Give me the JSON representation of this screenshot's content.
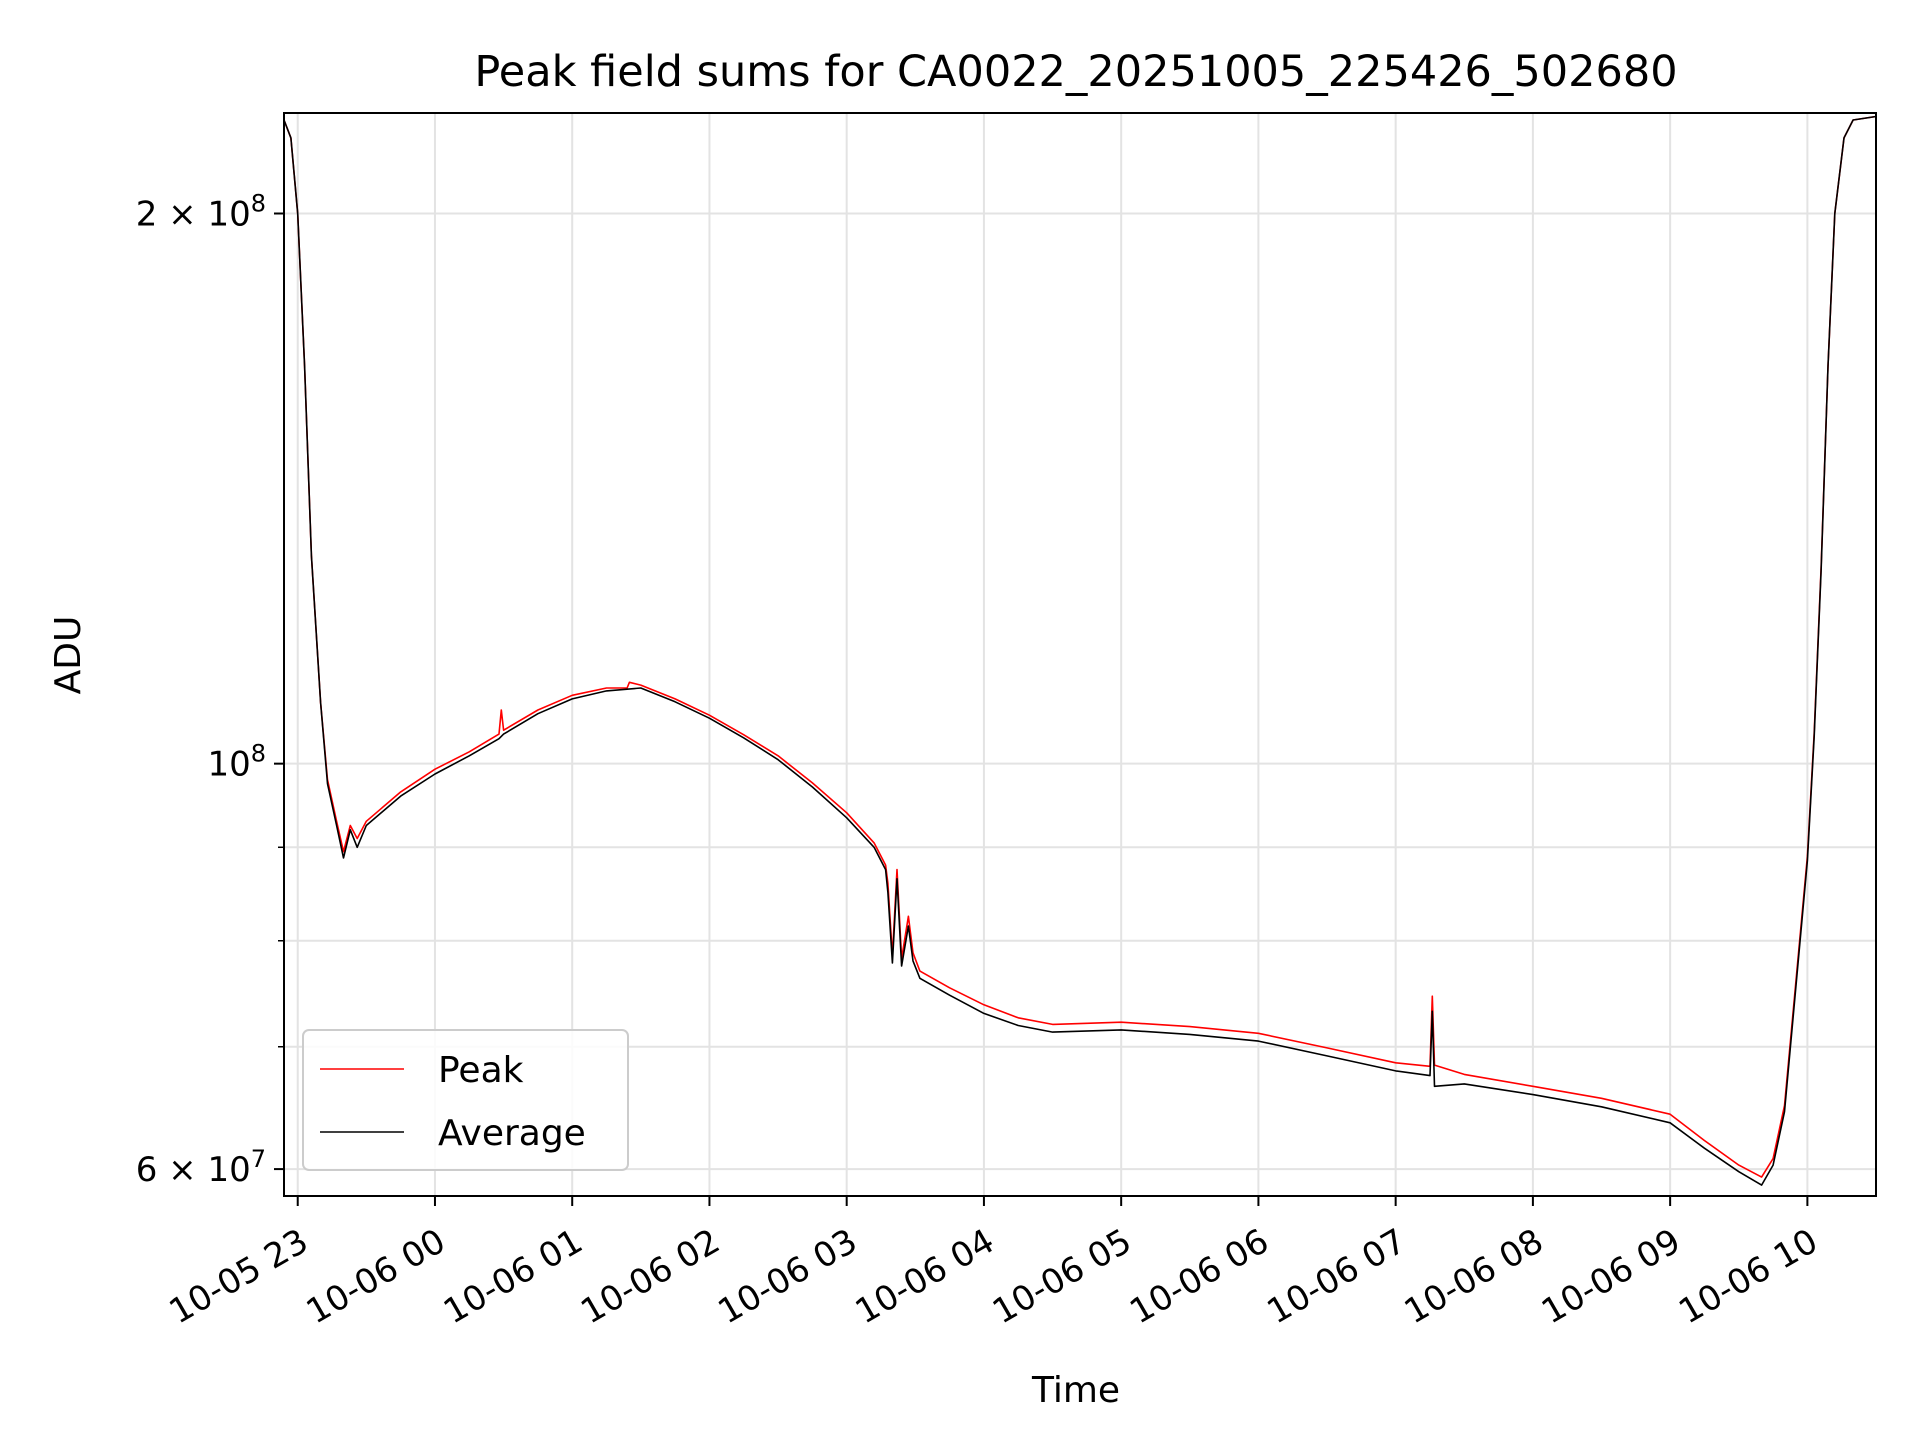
{
  "chart_data": {
    "type": "line",
    "title": "Peak field sums for CA0022_20251005_225426_502680",
    "xlabel": "Time",
    "ylabel": "ADU",
    "x_ticks": [
      "10-05 23",
      "10-06 00",
      "10-06 01",
      "10-06 02",
      "10-06 03",
      "10-06 04",
      "10-06 05",
      "10-06 06",
      "10-06 07",
      "10-06 08",
      "10-06 09",
      "10-06 10"
    ],
    "x_tick_times": [
      "2025-10-05 23:00",
      "2025-10-06 00:00",
      "2025-10-06 01:00",
      "2025-10-06 02:00",
      "2025-10-06 03:00",
      "2025-10-06 04:00",
      "2025-10-06 05:00",
      "2025-10-06 06:00",
      "2025-10-06 07:00",
      "2025-10-06 08:00",
      "2025-10-06 09:00",
      "2025-10-06 10:00"
    ],
    "xlim": [
      "2025-10-05 22:54",
      "2025-10-06 10:30"
    ],
    "y_scale": "log",
    "ylim": [
      58000000,
      227000000
    ],
    "y_major_ticks": [
      {
        "value": 60000000,
        "label": "6 × 10⁷",
        "mantissa": "6",
        "exponent": "7"
      },
      {
        "value": 100000000,
        "label": "10⁸",
        "mantissa": "",
        "exponent": "8"
      },
      {
        "value": 200000000,
        "label": "2 × 10⁸",
        "mantissa": "2",
        "exponent": "8"
      }
    ],
    "y_minor_ticks": [
      70000000,
      80000000,
      90000000
    ],
    "grid": true,
    "legend_position": "lower-left",
    "series": [
      {
        "name": "Peak",
        "color": "#ff0000",
        "points": [
          [
            "2025-10-05 22:54",
            225000000
          ],
          [
            "2025-10-05 22:57",
            220000000
          ],
          [
            "2025-10-05 23:00",
            200000000
          ],
          [
            "2025-10-05 23:03",
            165000000
          ],
          [
            "2025-10-05 23:06",
            130000000
          ],
          [
            "2025-10-05 23:10",
            108000000
          ],
          [
            "2025-10-05 23:13",
            98000000
          ],
          [
            "2025-10-05 23:17",
            93000000
          ],
          [
            "2025-10-05 23:20",
            89500000
          ],
          [
            "2025-10-05 23:23",
            92500000
          ],
          [
            "2025-10-05 23:26",
            91000000
          ],
          [
            "2025-10-05 23:30",
            93000000
          ],
          [
            "2025-10-05 23:45",
            96500000
          ],
          [
            "2025-10-06 00:00",
            99300000
          ],
          [
            "2025-10-06 00:15",
            101500000
          ],
          [
            "2025-10-06 00:28",
            103800000
          ],
          [
            "2025-10-06 00:29",
            107000000
          ],
          [
            "2025-10-06 00:30",
            104300000
          ],
          [
            "2025-10-06 00:45",
            107000000
          ],
          [
            "2025-10-06 01:00",
            109000000
          ],
          [
            "2025-10-06 01:15",
            110000000
          ],
          [
            "2025-10-06 01:24",
            110000000
          ],
          [
            "2025-10-06 01:25",
            110800000
          ],
          [
            "2025-10-06 01:30",
            110400000
          ],
          [
            "2025-10-06 01:45",
            108500000
          ],
          [
            "2025-10-06 02:00",
            106300000
          ],
          [
            "2025-10-06 02:15",
            103700000
          ],
          [
            "2025-10-06 02:30",
            101000000
          ],
          [
            "2025-10-06 02:45",
            97600000
          ],
          [
            "2025-10-06 03:00",
            94000000
          ],
          [
            "2025-10-06 03:12",
            90500000
          ],
          [
            "2025-10-06 03:17",
            88000000
          ],
          [
            "2025-10-06 03:18",
            86000000
          ],
          [
            "2025-10-06 03:20",
            78500000
          ],
          [
            "2025-10-06 03:22",
            87500000
          ],
          [
            "2025-10-06 03:24",
            78200000
          ],
          [
            "2025-10-06 03:27",
            82500000
          ],
          [
            "2025-10-06 03:29",
            78800000
          ],
          [
            "2025-10-06 03:32",
            77000000
          ],
          [
            "2025-10-06 03:45",
            75400000
          ],
          [
            "2025-10-06 04:00",
            73800000
          ],
          [
            "2025-10-06 04:15",
            72600000
          ],
          [
            "2025-10-06 04:30",
            72000000
          ],
          [
            "2025-10-06 05:00",
            72200000
          ],
          [
            "2025-10-06 05:30",
            71800000
          ],
          [
            "2025-10-06 06:00",
            71200000
          ],
          [
            "2025-10-06 06:30",
            69900000
          ],
          [
            "2025-10-06 07:00",
            68600000
          ],
          [
            "2025-10-06 07:15",
            68300000
          ],
          [
            "2025-10-06 07:16",
            74600000
          ],
          [
            "2025-10-06 07:17",
            68400000
          ],
          [
            "2025-10-06 07:30",
            67600000
          ],
          [
            "2025-10-06 08:00",
            66600000
          ],
          [
            "2025-10-06 08:30",
            65600000
          ],
          [
            "2025-10-06 09:00",
            64300000
          ],
          [
            "2025-10-06 09:15",
            62200000
          ],
          [
            "2025-10-06 09:30",
            60300000
          ],
          [
            "2025-10-06 09:40",
            59400000
          ],
          [
            "2025-10-06 09:45",
            60800000
          ],
          [
            "2025-10-06 09:50",
            65000000
          ],
          [
            "2025-10-06 09:55",
            76000000
          ],
          [
            "2025-10-06 10:00",
            89000000
          ],
          [
            "2025-10-06 10:03",
            104000000
          ],
          [
            "2025-10-06 10:06",
            128000000
          ],
          [
            "2025-10-06 10:09",
            165000000
          ],
          [
            "2025-10-06 10:12",
            200000000
          ],
          [
            "2025-10-06 10:16",
            220000000
          ],
          [
            "2025-10-06 10:20",
            225000000
          ],
          [
            "2025-10-06 10:30",
            226000000
          ]
        ]
      },
      {
        "name": "Average",
        "color": "#000000",
        "points": [
          [
            "2025-10-05 22:54",
            225000000
          ],
          [
            "2025-10-05 22:57",
            220000000
          ],
          [
            "2025-10-05 23:00",
            200000000
          ],
          [
            "2025-10-05 23:03",
            165000000
          ],
          [
            "2025-10-05 23:06",
            130000000
          ],
          [
            "2025-10-05 23:10",
            108000000
          ],
          [
            "2025-10-05 23:13",
            97500000
          ],
          [
            "2025-10-05 23:17",
            92500000
          ],
          [
            "2025-10-05 23:20",
            88800000
          ],
          [
            "2025-10-05 23:23",
            92000000
          ],
          [
            "2025-10-05 23:26",
            90000000
          ],
          [
            "2025-10-05 23:30",
            92500000
          ],
          [
            "2025-10-05 23:45",
            96000000
          ],
          [
            "2025-10-06 00:00",
            98700000
          ],
          [
            "2025-10-06 00:15",
            101000000
          ],
          [
            "2025-10-06 00:28",
            103200000
          ],
          [
            "2025-10-06 00:30",
            103800000
          ],
          [
            "2025-10-06 00:45",
            106500000
          ],
          [
            "2025-10-06 01:00",
            108500000
          ],
          [
            "2025-10-06 01:15",
            109600000
          ],
          [
            "2025-10-06 01:30",
            110000000
          ],
          [
            "2025-10-06 01:45",
            108100000
          ],
          [
            "2025-10-06 02:00",
            105900000
          ],
          [
            "2025-10-06 02:15",
            103300000
          ],
          [
            "2025-10-06 02:30",
            100500000
          ],
          [
            "2025-10-06 02:45",
            97100000
          ],
          [
            "2025-10-06 03:00",
            93400000
          ],
          [
            "2025-10-06 03:12",
            90000000
          ],
          [
            "2025-10-06 03:17",
            87500000
          ],
          [
            "2025-10-06 03:18",
            85000000
          ],
          [
            "2025-10-06 03:20",
            77800000
          ],
          [
            "2025-10-06 03:22",
            86500000
          ],
          [
            "2025-10-06 03:24",
            77500000
          ],
          [
            "2025-10-06 03:27",
            81500000
          ],
          [
            "2025-10-06 03:29",
            78000000
          ],
          [
            "2025-10-06 03:32",
            76300000
          ],
          [
            "2025-10-06 03:45",
            74700000
          ],
          [
            "2025-10-06 04:00",
            73000000
          ],
          [
            "2025-10-06 04:15",
            71900000
          ],
          [
            "2025-10-06 04:30",
            71300000
          ],
          [
            "2025-10-06 05:00",
            71500000
          ],
          [
            "2025-10-06 05:30",
            71100000
          ],
          [
            "2025-10-06 06:00",
            70500000
          ],
          [
            "2025-10-06 06:30",
            69200000
          ],
          [
            "2025-10-06 07:00",
            67900000
          ],
          [
            "2025-10-06 07:15",
            67500000
          ],
          [
            "2025-10-06 07:16",
            73200000
          ],
          [
            "2025-10-06 07:17",
            66600000
          ],
          [
            "2025-10-06 07:30",
            66800000
          ],
          [
            "2025-10-06 08:00",
            65900000
          ],
          [
            "2025-10-06 08:30",
            64900000
          ],
          [
            "2025-10-06 09:00",
            63600000
          ],
          [
            "2025-10-06 09:15",
            61600000
          ],
          [
            "2025-10-06 09:30",
            59800000
          ],
          [
            "2025-10-06 09:40",
            58800000
          ],
          [
            "2025-10-06 09:45",
            60300000
          ],
          [
            "2025-10-06 09:50",
            64500000
          ],
          [
            "2025-10-06 09:55",
            75500000
          ],
          [
            "2025-10-06 10:00",
            88500000
          ],
          [
            "2025-10-06 10:03",
            103500000
          ],
          [
            "2025-10-06 10:06",
            127500000
          ],
          [
            "2025-10-06 10:09",
            165000000
          ],
          [
            "2025-10-06 10:12",
            200000000
          ],
          [
            "2025-10-06 10:16",
            220000000
          ],
          [
            "2025-10-06 10:20",
            225000000
          ],
          [
            "2025-10-06 10:30",
            226000000
          ]
        ]
      }
    ]
  }
}
